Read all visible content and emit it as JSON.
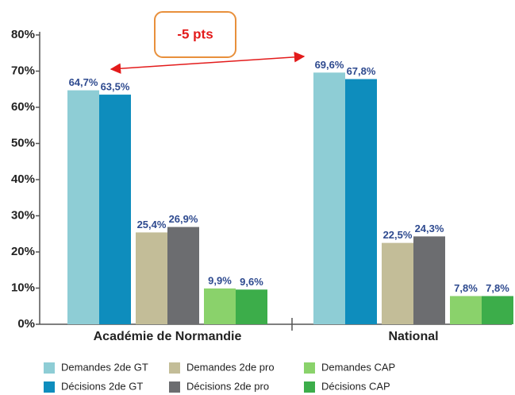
{
  "chart_data": {
    "type": "bar",
    "categories": [
      "Académie de Normandie",
      "National"
    ],
    "series": [
      {
        "name": "Demandes 2de GT",
        "color": "#8ecdd5",
        "values": [
          64.7,
          69.6
        ],
        "value_labels": [
          "64,7%",
          "69,6%"
        ]
      },
      {
        "name": "Décisions 2de GT",
        "color": "#0e8dbd",
        "values": [
          63.5,
          67.8
        ],
        "value_labels": [
          "63,5%",
          "67,8%"
        ]
      },
      {
        "name": "Demandes 2de pro",
        "color": "#c3bd98",
        "values": [
          25.4,
          22.5
        ],
        "value_labels": [
          "25,4%",
          "22,5%"
        ]
      },
      {
        "name": "Décisions 2de pro",
        "color": "#6c6d70",
        "values": [
          26.9,
          24.3
        ],
        "value_labels": [
          "26,9%",
          "24,3%"
        ]
      },
      {
        "name": "Demandes CAP",
        "color": "#8ad26b",
        "values": [
          9.9,
          7.8
        ],
        "value_labels": [
          "9,9%",
          "7,8%"
        ]
      },
      {
        "name": "Décisions CAP",
        "color": "#3cad4a",
        "values": [
          9.6,
          7.8
        ],
        "value_labels": [
          "9,6%",
          "7,8%"
        ]
      }
    ],
    "ylim": [
      0,
      80
    ],
    "yticks": [
      {
        "value": 0,
        "label": "0%"
      },
      {
        "value": 10,
        "label": "10%"
      },
      {
        "value": 20,
        "label": "20%"
      },
      {
        "value": 30,
        "label": "30%"
      },
      {
        "value": 40,
        "label": "40%"
      },
      {
        "value": 50,
        "label": "50%"
      },
      {
        "value": 60,
        "label": "60%"
      },
      {
        "value": 70,
        "label": "70%"
      },
      {
        "value": 80,
        "label": "80%"
      }
    ],
    "grid": false,
    "annotations": [
      {
        "text": "-5 pts"
      }
    ]
  }
}
